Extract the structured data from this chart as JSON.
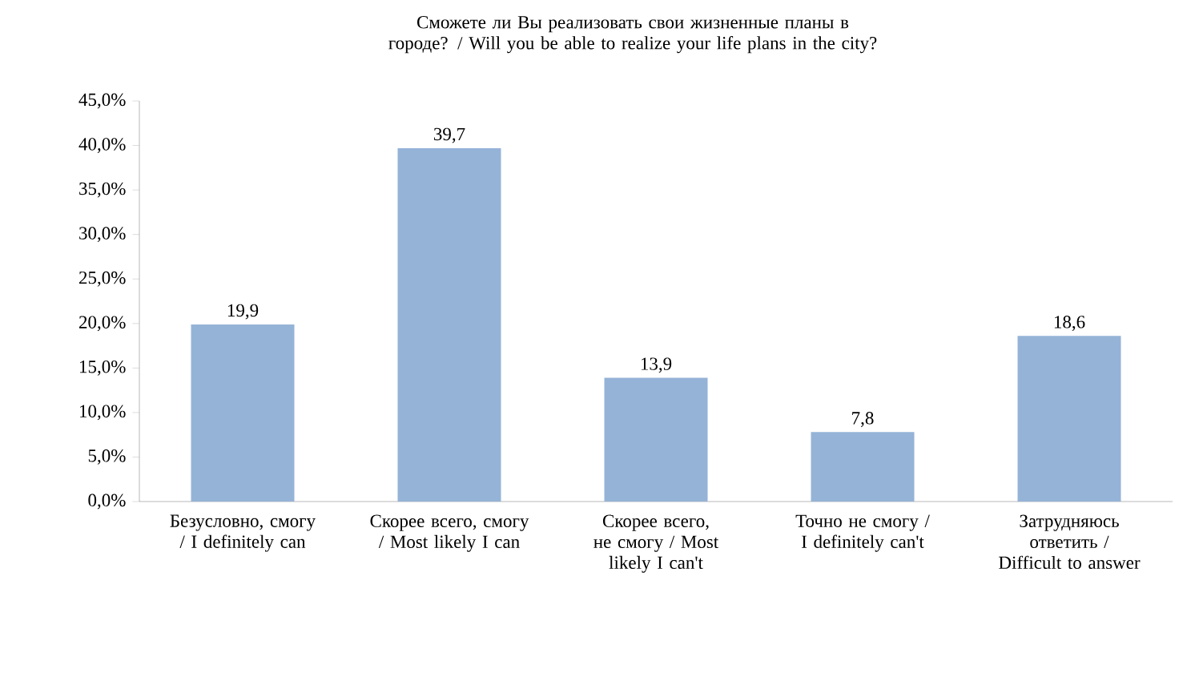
{
  "chart_data": {
    "type": "bar",
    "title": "Сможете ли Вы реализовать свои жизненные планы в городе? / Will you be able to realize your life plans in the city?",
    "categories": [
      "Безусловно, смогу / I definitely can",
      "Скорее всего, смогу / Most likely I can",
      "Скорее всего, не смогу / Most likely I can't",
      "Точно не смогу / I definitely can't",
      "Затрудняюсь ответить / Difficult to answer"
    ],
    "values": [
      19.9,
      39.7,
      13.9,
      7.8,
      18.6
    ],
    "value_labels": [
      "19,9",
      "39,7",
      "13,9",
      "7,8",
      "18,6"
    ],
    "color": "#95b3d7",
    "ylim": [
      0,
      45
    ],
    "yticks": [
      {
        "value": 0,
        "label": "0,0%"
      },
      {
        "value": 5,
        "label": "5,0%"
      },
      {
        "value": 10,
        "label": "10,0%"
      },
      {
        "value": 15,
        "label": "15,0%"
      },
      {
        "value": 20,
        "label": "20,0%"
      },
      {
        "value": 25,
        "label": "25,0%"
      },
      {
        "value": 30,
        "label": "30,0%"
      },
      {
        "value": 35,
        "label": "35,0%"
      },
      {
        "value": 40,
        "label": "40,0%"
      },
      {
        "value": 45,
        "label": "45,0%"
      }
    ],
    "grid": false
  }
}
